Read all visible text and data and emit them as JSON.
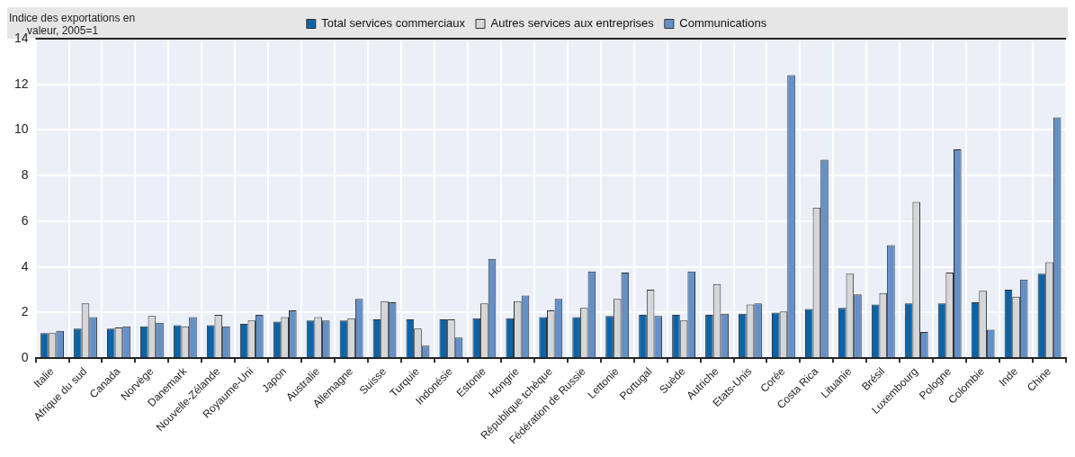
{
  "chart_data": {
    "type": "bar",
    "ylabel": "Indice des exportations en valeur, 2005=1",
    "categories": [
      "Italie",
      "Afrique du sud",
      "Canada",
      "Norvège",
      "Danemark",
      "Nouvelle-Zélande",
      "Royaume-Uni",
      "Japon",
      "Australie",
      "Allemagne",
      "Suisse",
      "Turquie",
      "Indonésie",
      "Estonie",
      "Hongrie",
      "République tchèque",
      "Fédération de Russie",
      "Lettonie",
      "Portugal",
      "Suède",
      "Autriche",
      "Etats-Unis",
      "Corée",
      "Costa Rica",
      "Lituanie",
      "Brésil",
      "Luxembourg",
      "Pologne",
      "Colombie",
      "Inde",
      "Chine"
    ],
    "series": [
      {
        "name": "Total services commerciaux",
        "color": "#0a64a8",
        "values": [
          1.1,
          1.3,
          1.3,
          1.4,
          1.45,
          1.45,
          1.5,
          1.6,
          1.65,
          1.65,
          1.7,
          1.7,
          1.7,
          1.75,
          1.75,
          1.8,
          1.8,
          1.85,
          1.9,
          1.9,
          1.9,
          1.95,
          2.0,
          2.15,
          2.2,
          2.35,
          2.4,
          2.4,
          2.45,
          3.0,
          3.7
        ]
      },
      {
        "name": "Autres services aux entreprises",
        "color": "#d4d6d8",
        "values": [
          1.1,
          2.4,
          1.35,
          1.85,
          1.4,
          1.9,
          1.65,
          1.8,
          1.8,
          1.75,
          2.5,
          1.3,
          1.7,
          2.4,
          2.5,
          2.1,
          2.2,
          2.6,
          3.0,
          1.65,
          3.25,
          2.35,
          2.05,
          6.6,
          3.7,
          2.85,
          6.85,
          3.75,
          2.95,
          2.7,
          4.2
        ]
      },
      {
        "name": "Communications",
        "color": "#6490c8",
        "values": [
          1.2,
          1.8,
          1.4,
          1.55,
          1.8,
          1.4,
          1.9,
          2.1,
          1.65,
          2.6,
          2.45,
          0.55,
          0.9,
          4.35,
          2.75,
          2.6,
          3.8,
          3.75,
          1.85,
          3.8,
          1.95,
          2.4,
          12.4,
          8.7,
          2.8,
          4.95,
          1.15,
          9.15,
          1.25,
          3.45,
          10.55
        ]
      }
    ],
    "ylim": [
      0,
      14
    ],
    "yticks": [
      0,
      2,
      4,
      6,
      8,
      10,
      12,
      14
    ],
    "grid": true,
    "legend": "top"
  }
}
